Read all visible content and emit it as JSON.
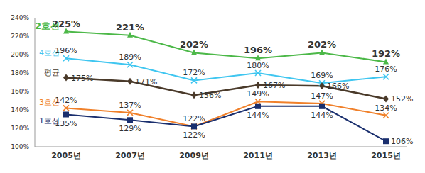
{
  "chart_data": {
    "type": "line",
    "categories": [
      "2005년",
      "2007년",
      "2009년",
      "2011년",
      "2013년",
      "2015년"
    ],
    "series": [
      {
        "name": "2호선",
        "color": "#4cb848",
        "marker": "triangle",
        "values": [
          225,
          221,
          202,
          196,
          202,
          192
        ],
        "value_labels": [
          "225%",
          "221%",
          "202%",
          "196%",
          "202%",
          "192%"
        ]
      },
      {
        "name": "4호선",
        "color": "#3fc6f0",
        "marker": "x",
        "values": [
          196,
          189,
          172,
          180,
          169,
          176
        ],
        "value_labels": [
          "196%",
          "189%",
          "172%",
          "180%",
          "169%",
          "176%"
        ]
      },
      {
        "name": "평균",
        "color": "#4a3a2a",
        "marker": "diamond",
        "values": [
          175,
          171,
          156,
          167,
          166,
          152
        ],
        "value_labels": [
          "175%",
          "171%",
          "156%",
          "167%",
          "166%",
          "152%"
        ]
      },
      {
        "name": "3호선",
        "color": "#f0802a",
        "marker": "x",
        "values": [
          142,
          137,
          122,
          149,
          147,
          134
        ],
        "value_labels": [
          "142%",
          "137%",
          "122%",
          "149%",
          "147%",
          "134%"
        ]
      },
      {
        "name": "1호선",
        "color": "#1a2f6e",
        "marker": "square",
        "values": [
          135,
          129,
          122,
          144,
          144,
          106
        ],
        "value_labels": [
          "135%",
          "129%",
          "122%",
          "144%",
          "144%",
          "106%"
        ]
      }
    ],
    "ylim": [
      100,
      240
    ],
    "yticks": [
      {
        "value": 100,
        "label": "100%"
      },
      {
        "value": 120,
        "label": "120%"
      },
      {
        "value": 140,
        "label": "140%"
      },
      {
        "value": 160,
        "label": "160%"
      },
      {
        "value": 180,
        "label": "180%"
      },
      {
        "value": 200,
        "label": "200%"
      },
      {
        "value": 220,
        "label": "220%"
      },
      {
        "value": 240,
        "label": "240%"
      }
    ],
    "grid": false,
    "data_labels": true
  }
}
